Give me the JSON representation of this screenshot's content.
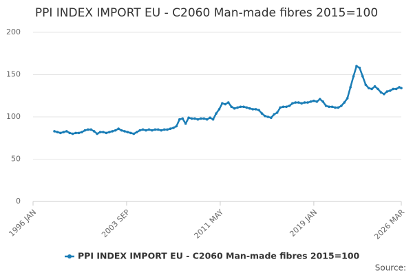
{
  "chart_data": {
    "type": "line",
    "title": "PPI INDEX IMPORT EU - C2060 Man-made fibres 2015=100",
    "source": "Source:",
    "x": [
      "1997 OCT",
      "1998 JAN",
      "1998 APR",
      "1998 JUL",
      "1998 OCT",
      "1999 JAN",
      "1999 APR",
      "1999 JUL",
      "1999 OCT",
      "2000 JAN",
      "2000 APR",
      "2000 JUL",
      "2000 OCT",
      "2001 JAN",
      "2001 APR",
      "2001 JUL",
      "2001 OCT",
      "2002 JAN",
      "2002 APR",
      "2002 JUL",
      "2002 OCT",
      "2003 JAN",
      "2003 APR",
      "2003 JUL",
      "2003 OCT",
      "2004 JAN",
      "2004 APR",
      "2004 JUL",
      "2004 OCT",
      "2005 JAN",
      "2005 APR",
      "2005 JUL",
      "2005 OCT",
      "2006 JAN",
      "2006 APR",
      "2006 JUL",
      "2006 OCT",
      "2007 JAN",
      "2007 APR",
      "2007 JUL",
      "2007 OCT",
      "2008 JAN",
      "2008 APR",
      "2008 JUL",
      "2008 OCT",
      "2009 JAN",
      "2009 APR",
      "2009 JUL",
      "2009 OCT",
      "2010 JAN",
      "2010 APR",
      "2010 JUL",
      "2010 OCT",
      "2011 JAN",
      "2011 APR",
      "2011 JUL",
      "2011 OCT",
      "2012 JAN",
      "2012 APR",
      "2012 JUL",
      "2012 OCT",
      "2013 JAN",
      "2013 APR",
      "2013 JUL",
      "2013 OCT",
      "2014 JAN",
      "2014 APR",
      "2014 JUL",
      "2014 OCT",
      "2015 JAN",
      "2015 APR",
      "2015 JUL",
      "2015 OCT",
      "2016 JAN",
      "2016 APR",
      "2016 JUL",
      "2016 OCT",
      "2017 JAN",
      "2017 APR",
      "2017 JUL",
      "2017 OCT",
      "2018 JAN",
      "2018 APR",
      "2018 JUL",
      "2018 OCT",
      "2019 JAN",
      "2019 APR",
      "2019 JUL",
      "2019 OCT",
      "2020 JAN",
      "2020 APR",
      "2020 JUL",
      "2020 OCT",
      "2021 JAN",
      "2021 APR",
      "2021 JUL",
      "2021 OCT",
      "2022 JAN",
      "2022 APR",
      "2022 JUL",
      "2022 OCT",
      "2023 JAN",
      "2023 APR",
      "2023 JUL",
      "2023 OCT",
      "2024 JAN",
      "2024 APR",
      "2024 JUL",
      "2024 OCT",
      "2025 JAN",
      "2025 APR",
      "2025 JUL",
      "2025 OCT",
      "2026 JAN",
      "2026 MAR"
    ],
    "series": [
      {
        "name": "PPI INDEX IMPORT EU - C2060 Man-made fibres 2015=100",
        "color": "#1a7db6",
        "values": [
          83,
          82,
          81,
          82,
          83,
          81,
          80,
          81,
          81,
          82,
          84,
          85,
          85,
          83,
          80,
          82,
          82,
          81,
          82,
          83,
          84,
          86,
          84,
          83,
          82,
          81,
          80,
          82,
          84,
          85,
          84,
          85,
          84,
          85,
          85,
          84,
          85,
          85,
          86,
          87,
          89,
          97,
          98,
          92,
          99,
          98,
          98,
          97,
          98,
          98,
          97,
          99,
          97,
          104,
          109,
          116,
          115,
          117,
          112,
          110,
          111,
          112,
          112,
          111,
          110,
          109,
          109,
          108,
          104,
          101,
          100,
          99,
          103,
          105,
          111,
          112,
          112,
          113,
          116,
          117,
          117,
          116,
          117,
          117,
          118,
          119,
          118,
          121,
          118,
          113,
          112,
          112,
          111,
          111,
          113,
          117,
          122,
          135,
          148,
          160,
          158,
          148,
          138,
          134,
          133,
          136,
          133,
          129,
          127,
          130,
          131,
          133,
          133,
          135,
          134
        ]
      }
    ],
    "xlim": [
      "1996 JAN",
      "2026 MAR"
    ],
    "xticks": [
      "1996 JAN",
      "2003 SEP",
      "2011 MAY",
      "2019 JAN",
      "2026 MAR"
    ],
    "ylim": [
      0,
      200
    ],
    "yticks": [
      0,
      50,
      100,
      150,
      200
    ],
    "grid": true,
    "legend": "bottom"
  }
}
